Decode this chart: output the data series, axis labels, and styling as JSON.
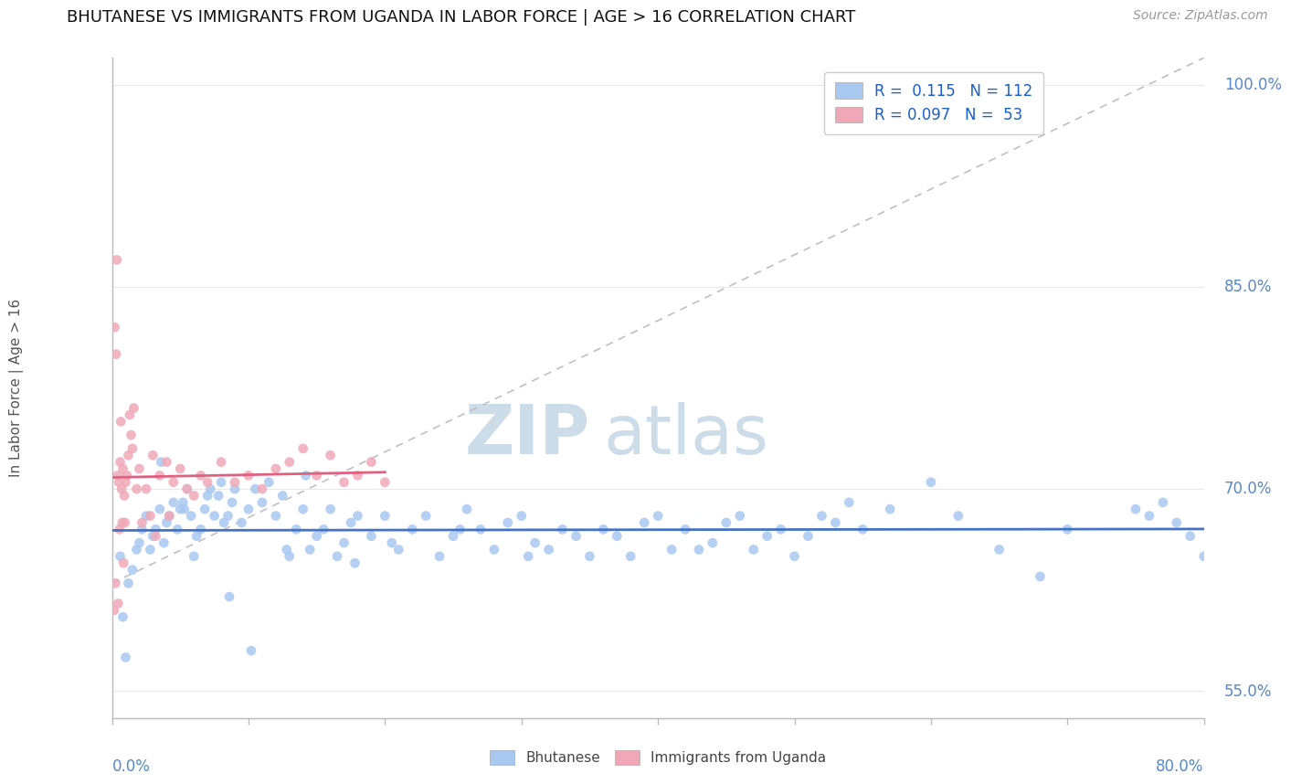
{
  "title": "BHUTANESE VS IMMIGRANTS FROM UGANDA IN LABOR FORCE | AGE > 16 CORRELATION CHART",
  "source_text": "Source: ZipAtlas.com",
  "ylabel_label": "In Labor Force | Age > 16",
  "blue_scatter_color": "#a8c8f0",
  "pink_scatter_color": "#f0a8b8",
  "blue_line_color": "#4472c4",
  "pink_line_color": "#e06080",
  "ref_line_color": "#c0c0c0",
  "background_color": "#ffffff",
  "watermark_color": "#ccdce8",
  "blue_R": 0.115,
  "blue_N": 112,
  "pink_R": 0.097,
  "pink_N": 53,
  "blue_x": [
    0.6,
    1.2,
    1.5,
    1.8,
    2.0,
    2.2,
    2.5,
    2.8,
    3.0,
    3.2,
    3.5,
    3.8,
    4.0,
    4.2,
    4.5,
    4.8,
    5.0,
    5.2,
    5.5,
    5.8,
    6.0,
    6.2,
    6.5,
    6.8,
    7.0,
    7.2,
    7.5,
    7.8,
    8.0,
    8.2,
    8.5,
    8.8,
    9.0,
    9.5,
    10.0,
    10.5,
    11.0,
    11.5,
    12.0,
    12.5,
    13.0,
    13.5,
    14.0,
    14.5,
    15.0,
    15.5,
    16.0,
    16.5,
    17.0,
    17.5,
    18.0,
    19.0,
    20.0,
    21.0,
    22.0,
    23.0,
    24.0,
    25.0,
    26.0,
    27.0,
    28.0,
    29.0,
    30.0,
    31.0,
    32.0,
    33.0,
    34.0,
    35.0,
    36.0,
    37.0,
    38.0,
    39.0,
    40.0,
    41.0,
    42.0,
    43.0,
    44.0,
    45.0,
    46.0,
    47.0,
    48.0,
    49.0,
    50.0,
    51.0,
    52.0,
    53.0,
    54.0,
    55.0,
    57.0,
    60.0,
    62.0,
    65.0,
    68.0,
    70.0,
    75.0,
    76.0,
    77.0,
    78.0,
    79.0,
    80.0,
    0.8,
    1.0,
    3.6,
    5.3,
    8.6,
    10.2,
    12.8,
    14.2,
    17.8,
    20.5,
    25.5,
    30.5
  ],
  "blue_y": [
    65.0,
    63.0,
    64.0,
    65.5,
    66.0,
    67.0,
    68.0,
    65.5,
    66.5,
    67.0,
    68.5,
    66.0,
    67.5,
    68.0,
    69.0,
    67.0,
    68.5,
    69.0,
    70.0,
    68.0,
    65.0,
    66.5,
    67.0,
    68.5,
    69.5,
    70.0,
    68.0,
    69.5,
    70.5,
    67.5,
    68.0,
    69.0,
    70.0,
    67.5,
    68.5,
    70.0,
    69.0,
    70.5,
    68.0,
    69.5,
    65.0,
    67.0,
    68.5,
    65.5,
    66.5,
    67.0,
    68.5,
    65.0,
    66.0,
    67.5,
    68.0,
    66.5,
    68.0,
    65.5,
    67.0,
    68.0,
    65.0,
    66.5,
    68.5,
    67.0,
    65.5,
    67.5,
    68.0,
    66.0,
    65.5,
    67.0,
    66.5,
    65.0,
    67.0,
    66.5,
    65.0,
    67.5,
    68.0,
    65.5,
    67.0,
    65.5,
    66.0,
    67.5,
    68.0,
    65.5,
    66.5,
    67.0,
    65.0,
    66.5,
    68.0,
    67.5,
    69.0,
    67.0,
    68.5,
    70.5,
    68.0,
    65.5,
    63.5,
    67.0,
    68.5,
    68.0,
    69.0,
    67.5,
    66.5,
    65.0,
    60.5,
    57.5,
    72.0,
    68.5,
    62.0,
    58.0,
    65.5,
    71.0,
    64.5,
    66.0,
    67.0,
    65.0
  ],
  "pink_x": [
    0.2,
    0.3,
    0.4,
    0.5,
    0.6,
    0.7,
    0.8,
    0.9,
    1.0,
    1.1,
    1.2,
    1.5,
    1.8,
    2.0,
    2.5,
    3.0,
    3.5,
    4.0,
    4.5,
    5.0,
    5.5,
    6.0,
    6.5,
    7.0,
    8.0,
    9.0,
    10.0,
    11.0,
    12.0,
    13.0,
    14.0,
    15.0,
    16.0,
    17.0,
    18.0,
    19.0,
    20.0,
    0.35,
    0.65,
    0.75,
    0.85,
    1.3,
    1.6,
    2.2,
    3.2,
    4.2,
    0.25,
    0.55,
    1.4,
    2.8,
    0.45,
    0.95,
    0.15
  ],
  "pink_y": [
    82.0,
    80.0,
    71.0,
    70.5,
    72.0,
    70.0,
    71.5,
    69.5,
    70.5,
    71.0,
    72.5,
    73.0,
    70.0,
    71.5,
    70.0,
    72.5,
    71.0,
    72.0,
    70.5,
    71.5,
    70.0,
    69.5,
    71.0,
    70.5,
    72.0,
    70.5,
    71.0,
    70.0,
    71.5,
    72.0,
    73.0,
    71.0,
    72.5,
    70.5,
    71.0,
    72.0,
    70.5,
    87.0,
    75.0,
    67.5,
    64.5,
    75.5,
    76.0,
    67.5,
    66.5,
    68.0,
    63.0,
    67.0,
    74.0,
    68.0,
    61.5,
    67.5,
    61.0
  ],
  "xlim": [
    0.0,
    80.0
  ],
  "ylim": [
    53.0,
    102.0
  ],
  "yticks": [
    55.0,
    70.0,
    85.0,
    100.0
  ],
  "xticks": [
    0.0,
    10.0,
    20.0,
    30.0,
    40.0,
    50.0,
    60.0,
    70.0,
    80.0
  ],
  "grid_color": "#e8e8e8"
}
